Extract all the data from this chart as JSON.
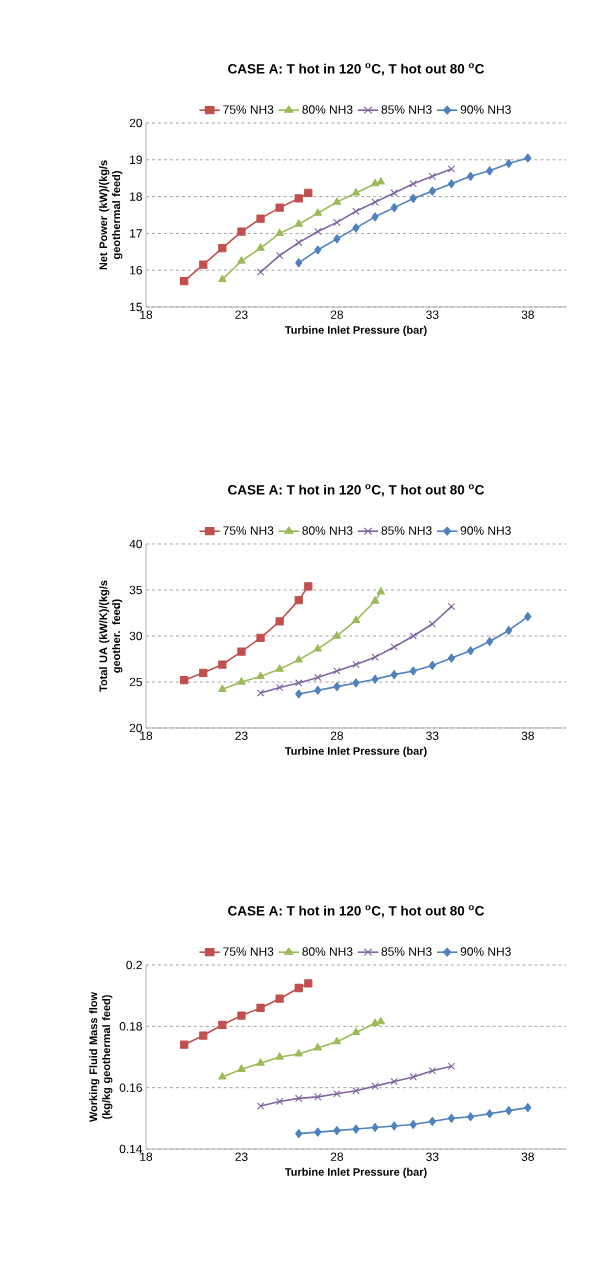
{
  "chart_data": [
    {
      "type": "line",
      "title": "CASE A: T hot in 120 $^{o}$C, T hot out 80 $^{o}$C",
      "xlabel": "Turbine Inlet Pressure (bar)",
      "ylabel": "Net Power (kW)/(kg/s geothermal feed)",
      "xlim": [
        18,
        40
      ],
      "xticks": [
        18,
        23,
        28,
        33,
        38
      ],
      "ylim": [
        15,
        20
      ],
      "yticks": [
        15,
        16,
        17,
        18,
        19,
        20
      ],
      "grid": "y",
      "legend": "top",
      "line_style": "solid",
      "series": [
        {
          "name": "75% NH3",
          "color": "#c0504d",
          "marker": "square",
          "x": [
            20,
            21,
            22,
            23,
            24,
            25,
            26,
            26.5
          ],
          "values": [
            15.7,
            16.15,
            16.6,
            17.05,
            17.4,
            17.7,
            17.95,
            18.1
          ]
        },
        {
          "name": "80% NH3",
          "color": "#9bbb59",
          "marker": "triangle",
          "x": [
            22,
            23,
            24,
            25,
            26,
            27,
            28,
            29,
            30,
            30.3
          ],
          "values": [
            15.75,
            16.25,
            16.6,
            17.0,
            17.25,
            17.55,
            17.85,
            18.1,
            18.35,
            18.4
          ]
        },
        {
          "name": "85% NH3",
          "color": "#8064a2",
          "marker": "cross",
          "x": [
            24,
            25,
            26,
            27,
            28,
            29,
            30,
            31,
            32,
            33,
            34
          ],
          "values": [
            15.95,
            16.4,
            16.75,
            17.05,
            17.3,
            17.6,
            17.85,
            18.1,
            18.35,
            18.55,
            18.75
          ]
        },
        {
          "name": "90% NH3",
          "color": "#4f81bd",
          "marker": "diamond",
          "x": [
            26,
            27,
            28,
            29,
            30,
            31,
            32,
            33,
            34,
            35,
            36,
            37,
            38
          ],
          "values": [
            16.2,
            16.55,
            16.85,
            17.15,
            17.45,
            17.7,
            17.95,
            18.15,
            18.35,
            18.55,
            18.7,
            18.9,
            19.05
          ]
        }
      ]
    },
    {
      "type": "line",
      "title": "CASE A: T hot in 120 $^{o}$C, T hot out 80 $^{o}$C",
      "xlabel": "Turbine Inlet Pressure (bar)",
      "ylabel": "Total UA (kW/K)/(kg/s geother. feed)",
      "xlim": [
        18,
        40
      ],
      "xticks": [
        18,
        23,
        28,
        33,
        38
      ],
      "ylim": [
        20,
        40
      ],
      "yticks": [
        20,
        25,
        30,
        35,
        40
      ],
      "grid": "y",
      "legend": "top",
      "line_style": "solid",
      "series": [
        {
          "name": "75% NH3",
          "color": "#c0504d",
          "marker": "square",
          "x": [
            20,
            21,
            22,
            23,
            24,
            25,
            26,
            26.5
          ],
          "values": [
            25.2,
            26.0,
            26.9,
            28.3,
            29.8,
            31.6,
            33.9,
            35.4
          ]
        },
        {
          "name": "80% NH3",
          "color": "#9bbb59",
          "marker": "triangle",
          "x": [
            22,
            23,
            24,
            25,
            26,
            27,
            28,
            29,
            30,
            30.3
          ],
          "values": [
            24.2,
            25.0,
            25.6,
            26.4,
            27.4,
            28.6,
            30.0,
            31.7,
            33.8,
            34.8
          ]
        },
        {
          "name": "85% NH3",
          "color": "#8064a2",
          "marker": "cross",
          "x": [
            24,
            25,
            26,
            27,
            28,
            29,
            30,
            31,
            32,
            33,
            34
          ],
          "values": [
            23.8,
            24.4,
            24.9,
            25.5,
            26.2,
            26.9,
            27.7,
            28.8,
            30.0,
            31.3,
            33.2
          ]
        },
        {
          "name": "90% NH3",
          "color": "#4f81bd",
          "marker": "diamond",
          "x": [
            26,
            27,
            28,
            29,
            30,
            31,
            32,
            33,
            34,
            35,
            36,
            37,
            38
          ],
          "values": [
            23.7,
            24.1,
            24.5,
            24.9,
            25.3,
            25.8,
            26.2,
            26.8,
            27.6,
            28.4,
            29.4,
            30.6,
            32.1
          ]
        }
      ]
    },
    {
      "type": "line",
      "title": "CASE A: T hot in 120 $^{o}$C, T hot out 80 $^{o}$C",
      "xlabel": "Turbine Inlet Pressure (bar)",
      "ylabel": "Working Fluid Mass flow (kg/kg geothermal feed)",
      "xlim": [
        18,
        40
      ],
      "xticks": [
        18,
        23,
        28,
        33,
        38
      ],
      "ylim": [
        0.14,
        0.2
      ],
      "yticks": [
        0.14,
        0.16,
        0.18,
        0.2
      ],
      "grid": "y",
      "legend": "top",
      "line_style": "solid",
      "series": [
        {
          "name": "75% NH3",
          "color": "#c0504d",
          "marker": "square",
          "x": [
            20,
            21,
            22,
            23,
            24,
            25,
            26,
            26.5
          ],
          "values": [
            0.174,
            0.177,
            0.1805,
            0.1835,
            0.186,
            0.189,
            0.1925,
            0.194
          ]
        },
        {
          "name": "80% NH3",
          "color": "#9bbb59",
          "marker": "triangle",
          "x": [
            22,
            23,
            24,
            25,
            26,
            27,
            28,
            29,
            30,
            30.3
          ],
          "values": [
            0.1635,
            0.166,
            0.168,
            0.17,
            0.171,
            0.173,
            0.175,
            0.178,
            0.181,
            0.1815
          ]
        },
        {
          "name": "85% NH3",
          "color": "#8064a2",
          "marker": "cross",
          "x": [
            24,
            25,
            26,
            27,
            28,
            29,
            30,
            31,
            32,
            33,
            34
          ],
          "values": [
            0.154,
            0.1555,
            0.1565,
            0.157,
            0.158,
            0.159,
            0.1605,
            0.162,
            0.1635,
            0.1655,
            0.167
          ]
        },
        {
          "name": "90% NH3",
          "color": "#4f81bd",
          "marker": "diamond",
          "x": [
            26,
            27,
            28,
            29,
            30,
            31,
            32,
            33,
            34,
            35,
            36,
            37,
            38
          ],
          "values": [
            0.145,
            0.1455,
            0.146,
            0.1465,
            0.147,
            0.1475,
            0.148,
            0.149,
            0.15,
            0.1505,
            0.1515,
            0.1525,
            0.1535
          ]
        }
      ]
    }
  ]
}
